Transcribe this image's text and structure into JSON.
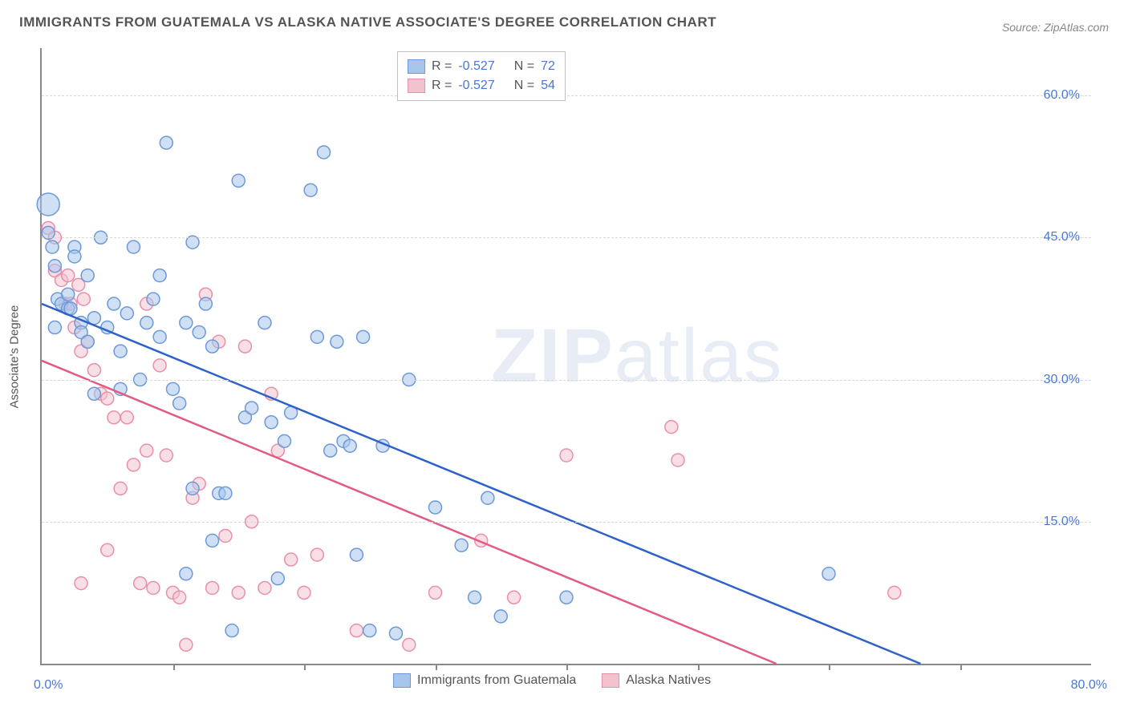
{
  "title": "IMMIGRANTS FROM GUATEMALA VS ALASKA NATIVE ASSOCIATE'S DEGREE CORRELATION CHART",
  "source_label": "Source:",
  "source_value": "ZipAtlas.com",
  "watermark": {
    "zip": "ZIP",
    "atlas": "atlas"
  },
  "chart": {
    "type": "scatter",
    "background_color": "#ffffff",
    "grid_color": "#d9d9d9",
    "axis_color": "#888888",
    "xlim": [
      0,
      80
    ],
    "ylim": [
      0,
      65
    ],
    "x_axis": {
      "min_label": "0.0%",
      "max_label": "80.0%",
      "tick_positions_pct": [
        10,
        20,
        30,
        40,
        50,
        60,
        70
      ]
    },
    "y_axis": {
      "label": "Associate's Degree",
      "ticks": [
        {
          "value": 15,
          "label": "15.0%"
        },
        {
          "value": 30,
          "label": "30.0%"
        },
        {
          "value": 45,
          "label": "45.0%"
        },
        {
          "value": 60,
          "label": "60.0%"
        }
      ]
    },
    "legend_top": {
      "rows": [
        {
          "swatch_fill": "#a8c6ec",
          "swatch_stroke": "#6d99d8",
          "r_label": "R =",
          "r_value": "-0.527",
          "n_label": "N =",
          "n_value": "72"
        },
        {
          "swatch_fill": "#f3c2cf",
          "swatch_stroke": "#e98fa9",
          "r_label": "R =",
          "r_value": "-0.527",
          "n_label": "N =",
          "n_value": "54"
        }
      ]
    },
    "legend_bottom": {
      "items": [
        {
          "swatch_fill": "#a8c6ec",
          "swatch_stroke": "#6d99d8",
          "label": "Immigrants from Guatemala"
        },
        {
          "swatch_fill": "#f3c2cf",
          "swatch_stroke": "#e98fa9",
          "label": "Alaska Natives"
        }
      ]
    },
    "marker_radius": 8,
    "marker_radius_large": 14,
    "stroke_width": 1.5,
    "series": [
      {
        "name": "Immigrants from Guatemala",
        "fill": "rgba(168,198,236,0.55)",
        "stroke": "#6d99d8",
        "trend": {
          "color": "#2e62c9",
          "width": 2.5,
          "x1": 0,
          "y1": 38,
          "x2": 67,
          "y2": 0
        },
        "points": [
          [
            0.5,
            48.5,
            "large"
          ],
          [
            0.5,
            45.5
          ],
          [
            0.8,
            44.0
          ],
          [
            1.0,
            42.0
          ],
          [
            1.2,
            38.5
          ],
          [
            1.5,
            38.0
          ],
          [
            1.0,
            35.5
          ],
          [
            2.0,
            37.5
          ],
          [
            2.0,
            39.0
          ],
          [
            2.2,
            37.5
          ],
          [
            2.5,
            44.0
          ],
          [
            3.0,
            36.0
          ],
          [
            3.5,
            41.0
          ],
          [
            3.0,
            35.0
          ],
          [
            3.5,
            34.0
          ],
          [
            4.0,
            36.5
          ],
          [
            4.5,
            45.0
          ],
          [
            5.0,
            35.5
          ],
          [
            5.5,
            38.0
          ],
          [
            6.0,
            33.0
          ],
          [
            6.5,
            37.0
          ],
          [
            7.0,
            44.0
          ],
          [
            7.5,
            30.0
          ],
          [
            8.0,
            36.0
          ],
          [
            8.5,
            38.5
          ],
          [
            9.0,
            34.5
          ],
          [
            9.5,
            55.0
          ],
          [
            10.0,
            29.0
          ],
          [
            10.5,
            27.5
          ],
          [
            11.0,
            36.0
          ],
          [
            11.5,
            44.5
          ],
          [
            12.0,
            35.0
          ],
          [
            12.5,
            38.0
          ],
          [
            13.0,
            33.5
          ],
          [
            13.5,
            18.0
          ],
          [
            14.0,
            18.0
          ],
          [
            15.0,
            51.0
          ],
          [
            15.5,
            26.0
          ],
          [
            16.0,
            27.0
          ],
          [
            11.0,
            9.5
          ],
          [
            17.0,
            36.0
          ],
          [
            17.5,
            25.5
          ],
          [
            18.0,
            9.0
          ],
          [
            18.5,
            23.5
          ],
          [
            19.0,
            26.5
          ],
          [
            14.5,
            3.5
          ],
          [
            20.5,
            50.0
          ],
          [
            21.0,
            34.5
          ],
          [
            21.5,
            54.0
          ],
          [
            22.0,
            22.5
          ],
          [
            22.5,
            34.0
          ],
          [
            23.0,
            23.5
          ],
          [
            23.5,
            23.0
          ],
          [
            24.0,
            11.5
          ],
          [
            24.5,
            34.5
          ],
          [
            25.0,
            3.5
          ],
          [
            26.0,
            23.0
          ],
          [
            27.0,
            3.2
          ],
          [
            28.0,
            30.0
          ],
          [
            13.0,
            13.0
          ],
          [
            30.0,
            16.5
          ],
          [
            32.0,
            12.5
          ],
          [
            33.0,
            7.0
          ],
          [
            34.0,
            17.5
          ],
          [
            35.0,
            5.0
          ],
          [
            40.0,
            7.0
          ],
          [
            11.5,
            18.5
          ],
          [
            9.0,
            41.0
          ],
          [
            4.0,
            28.5
          ],
          [
            6.0,
            29.0
          ],
          [
            60.0,
            9.5
          ],
          [
            2.5,
            43.0
          ]
        ]
      },
      {
        "name": "Alaska Natives",
        "fill": "rgba(243,194,207,0.55)",
        "stroke": "#e98fa9",
        "trend": {
          "color": "#e15b82",
          "width": 2.5,
          "x1": 0,
          "y1": 32,
          "x2": 56,
          "y2": 0
        },
        "points": [
          [
            0.5,
            46.0
          ],
          [
            1.0,
            45.0
          ],
          [
            1.0,
            41.5
          ],
          [
            1.5,
            40.5
          ],
          [
            1.8,
            38.0
          ],
          [
            2.0,
            41.0
          ],
          [
            2.2,
            38.0
          ],
          [
            2.5,
            35.5
          ],
          [
            2.8,
            40.0
          ],
          [
            3.0,
            33.0
          ],
          [
            3.2,
            38.5
          ],
          [
            3.5,
            34.0
          ],
          [
            4.0,
            31.0
          ],
          [
            4.5,
            28.5
          ],
          [
            5.0,
            28.0
          ],
          [
            5.5,
            26.0
          ],
          [
            6.0,
            18.5
          ],
          [
            6.5,
            26.0
          ],
          [
            7.0,
            21.0
          ],
          [
            7.5,
            8.5
          ],
          [
            8.0,
            22.5
          ],
          [
            8.5,
            8.0
          ],
          [
            5.0,
            12.0
          ],
          [
            9.5,
            22.0
          ],
          [
            10.0,
            7.5
          ],
          [
            10.5,
            7.0
          ],
          [
            9.0,
            31.5
          ],
          [
            11.5,
            17.5
          ],
          [
            12.0,
            19.0
          ],
          [
            12.5,
            39.0
          ],
          [
            13.0,
            8.0
          ],
          [
            13.5,
            34.0
          ],
          [
            14.0,
            13.5
          ],
          [
            11.0,
            2.0
          ],
          [
            15.0,
            7.5
          ],
          [
            15.5,
            33.5
          ],
          [
            16.0,
            15.0
          ],
          [
            17.0,
            8.0
          ],
          [
            17.5,
            28.5
          ],
          [
            18.0,
            22.5
          ],
          [
            19.0,
            11.0
          ],
          [
            20.0,
            7.5
          ],
          [
            21.0,
            11.5
          ],
          [
            24.0,
            3.5
          ],
          [
            28.0,
            2.0
          ],
          [
            30.0,
            7.5
          ],
          [
            33.5,
            13.0
          ],
          [
            36.0,
            7.0
          ],
          [
            40.0,
            22.0
          ],
          [
            48.0,
            25.0
          ],
          [
            48.5,
            21.5
          ],
          [
            8.0,
            38.0
          ],
          [
            65.0,
            7.5
          ],
          [
            3.0,
            8.5
          ]
        ]
      }
    ]
  }
}
